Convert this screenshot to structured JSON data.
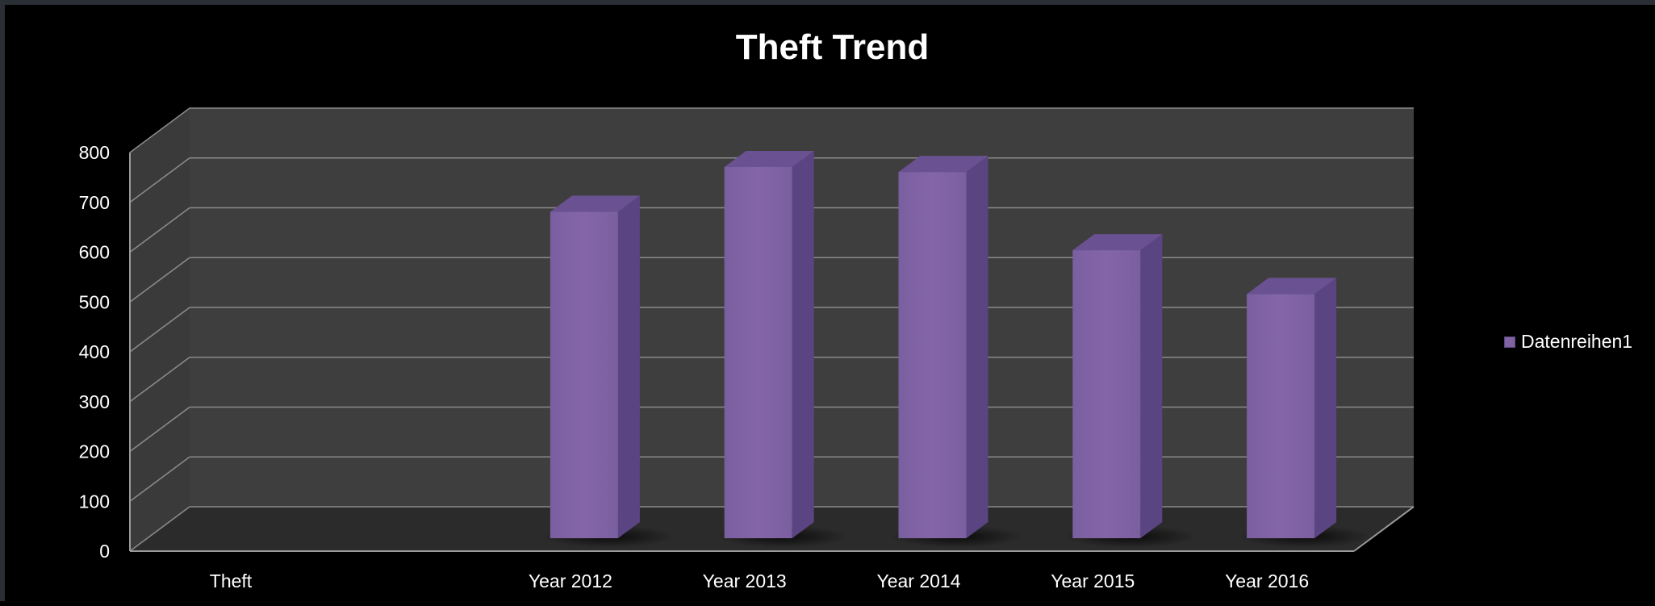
{
  "chart_data": {
    "type": "bar",
    "title": "Theft Trend",
    "xlabel": "",
    "ylabel": "",
    "categories": [
      "Theft",
      "Year 2012",
      "Year 2013",
      "Year 2014",
      "Year 2015",
      "Year 2016"
    ],
    "series": [
      {
        "name": "Datenreihen1",
        "values": [
          null,
          655,
          745,
          735,
          578,
          490
        ],
        "color": "#8064a2"
      }
    ],
    "ylim": [
      0,
      800
    ],
    "yticks": [
      0,
      100,
      200,
      300,
      400,
      500,
      600,
      700,
      800
    ],
    "grid": true,
    "legend_position": "right",
    "three_d": true
  }
}
